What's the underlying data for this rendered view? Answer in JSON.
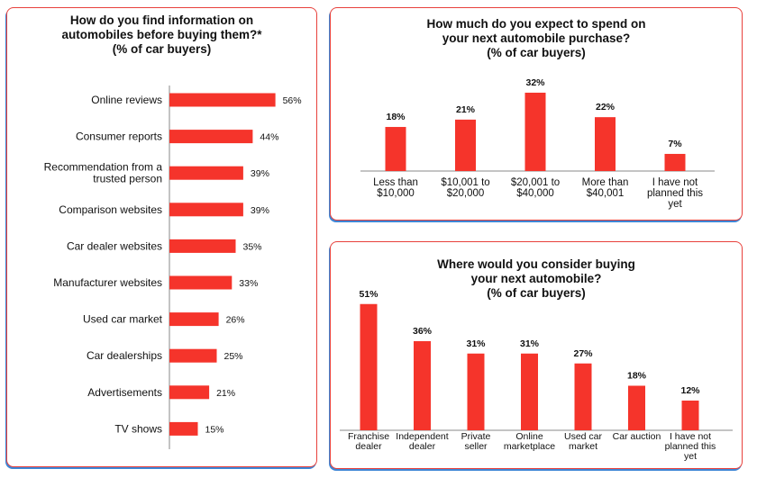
{
  "colors": {
    "bar": "#f5342b",
    "axis": "#8a8a8a",
    "text": "#111111",
    "border": "#e8413c",
    "shadow": "#3d86d6"
  },
  "chart_data": [
    {
      "type": "bar",
      "orientation": "horizontal",
      "title": "How do you find information on\nautomobiles before buying them?*\n(% of car buyers)",
      "categories": [
        "Online reviews",
        "Consumer reports",
        "Recommendation from a trusted person",
        "Comparison websites",
        "Car dealer websites",
        "Manufacturer websites",
        "Used car market",
        "Car dealerships",
        "Advertisements",
        "TV shows"
      ],
      "values": [
        56,
        44,
        39,
        39,
        35,
        33,
        26,
        25,
        21,
        15
      ],
      "labels": [
        "56%",
        "44%",
        "39%",
        "39%",
        "35%",
        "33%",
        "26%",
        "25%",
        "21%",
        "15%"
      ]
    },
    {
      "type": "bar",
      "title": "How much do you expect to spend on\nyour next automobile purchase?\n(% of car buyers)",
      "categories": [
        "Less than $10,000",
        "$10,001 to $20,000",
        "$20,001 to $40,000",
        "More than $40,001",
        "I have not planned this yet"
      ],
      "values": [
        18,
        21,
        32,
        22,
        7
      ],
      "labels": [
        "18%",
        "21%",
        "32%",
        "22%",
        "7%"
      ]
    },
    {
      "type": "bar",
      "title": "Where would you consider buying\nyour next automobile?\n(% of car buyers)",
      "categories": [
        "Franchise dealer",
        "Independent dealer",
        "Private seller",
        "Online marketplace",
        "Used car market",
        "Car auction",
        "I have not planned this yet"
      ],
      "values": [
        51,
        36,
        31,
        31,
        27,
        18,
        12
      ],
      "labels": [
        "51%",
        "36%",
        "31%",
        "31%",
        "27%",
        "18%",
        "12%"
      ]
    }
  ]
}
